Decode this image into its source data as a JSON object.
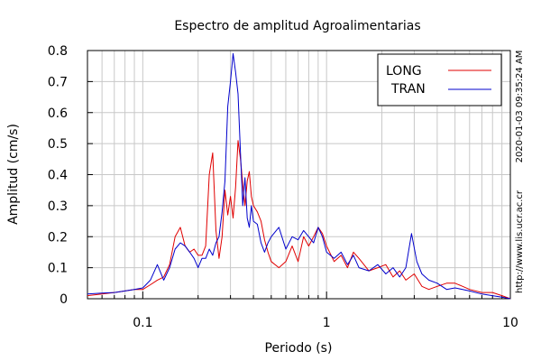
{
  "chart_data": {
    "type": "line",
    "title": "Espectro de amplitud Agroalimentarias",
    "xlabel": "Periodo (s)",
    "ylabel": "Amplitud (cm/s)",
    "x_scale": "log",
    "xlim": [
      0.05,
      10
    ],
    "ylim": [
      0,
      0.8
    ],
    "x_ticks": [
      {
        "value": 0.1,
        "label": "0.1"
      },
      {
        "value": 1,
        "label": "1"
      },
      {
        "value": 10,
        "label": "10"
      }
    ],
    "y_ticks": [
      {
        "value": 0,
        "label": "0"
      },
      {
        "value": 0.1,
        "label": "0.1"
      },
      {
        "value": 0.2,
        "label": "0.2"
      },
      {
        "value": 0.3,
        "label": "0.3"
      },
      {
        "value": 0.4,
        "label": "0.4"
      },
      {
        "value": 0.5,
        "label": "0.5"
      },
      {
        "value": 0.6,
        "label": "0.6"
      },
      {
        "value": 0.7,
        "label": "0.7"
      },
      {
        "value": 0.8,
        "label": "0.8"
      }
    ],
    "grid": true,
    "legend_position": "top-right",
    "series": [
      {
        "name": "LONG",
        "color": "#e00000",
        "x": [
          0.05,
          0.06,
          0.07,
          0.08,
          0.09,
          0.1,
          0.11,
          0.12,
          0.13,
          0.14,
          0.15,
          0.16,
          0.17,
          0.18,
          0.19,
          0.2,
          0.21,
          0.22,
          0.23,
          0.24,
          0.25,
          0.26,
          0.27,
          0.28,
          0.29,
          0.3,
          0.31,
          0.32,
          0.33,
          0.34,
          0.35,
          0.36,
          0.37,
          0.38,
          0.39,
          0.4,
          0.42,
          0.44,
          0.46,
          0.48,
          0.5,
          0.55,
          0.6,
          0.65,
          0.7,
          0.75,
          0.8,
          0.85,
          0.9,
          0.95,
          1.0,
          1.1,
          1.2,
          1.3,
          1.4,
          1.5,
          1.7,
          1.9,
          2.1,
          2.3,
          2.5,
          2.7,
          3.0,
          3.3,
          3.6,
          4.0,
          4.5,
          5.0,
          5.5,
          6.0,
          7.0,
          8.0,
          9.0,
          10.0
        ],
        "values": [
          0.01,
          0.015,
          0.02,
          0.025,
          0.03,
          0.03,
          0.045,
          0.06,
          0.07,
          0.11,
          0.2,
          0.23,
          0.17,
          0.15,
          0.16,
          0.14,
          0.14,
          0.17,
          0.4,
          0.47,
          0.22,
          0.13,
          0.2,
          0.35,
          0.27,
          0.33,
          0.26,
          0.36,
          0.51,
          0.45,
          0.37,
          0.3,
          0.38,
          0.41,
          0.33,
          0.3,
          0.28,
          0.25,
          0.19,
          0.15,
          0.12,
          0.1,
          0.12,
          0.17,
          0.12,
          0.2,
          0.17,
          0.2,
          0.23,
          0.21,
          0.17,
          0.12,
          0.14,
          0.1,
          0.15,
          0.13,
          0.09,
          0.1,
          0.11,
          0.07,
          0.09,
          0.06,
          0.08,
          0.04,
          0.03,
          0.04,
          0.05,
          0.05,
          0.04,
          0.03,
          0.02,
          0.02,
          0.01,
          0.0
        ]
      },
      {
        "name": "TRAN",
        "color": "#0000cc",
        "x": [
          0.05,
          0.06,
          0.07,
          0.08,
          0.09,
          0.1,
          0.11,
          0.12,
          0.13,
          0.14,
          0.15,
          0.16,
          0.17,
          0.18,
          0.19,
          0.2,
          0.21,
          0.22,
          0.23,
          0.24,
          0.25,
          0.26,
          0.27,
          0.28,
          0.29,
          0.3,
          0.31,
          0.32,
          0.33,
          0.34,
          0.35,
          0.36,
          0.37,
          0.38,
          0.39,
          0.4,
          0.42,
          0.44,
          0.46,
          0.48,
          0.5,
          0.55,
          0.6,
          0.65,
          0.7,
          0.75,
          0.8,
          0.85,
          0.9,
          0.95,
          1.0,
          1.1,
          1.2,
          1.3,
          1.4,
          1.5,
          1.7,
          1.9,
          2.1,
          2.3,
          2.5,
          2.7,
          2.9,
          3.1,
          3.3,
          3.6,
          4.0,
          4.5,
          5.0,
          5.5,
          6.0,
          7.0,
          8.0,
          9.0,
          10.0
        ],
        "values": [
          0.015,
          0.018,
          0.02,
          0.025,
          0.03,
          0.035,
          0.06,
          0.11,
          0.06,
          0.1,
          0.16,
          0.18,
          0.17,
          0.15,
          0.13,
          0.1,
          0.13,
          0.13,
          0.16,
          0.14,
          0.18,
          0.2,
          0.28,
          0.38,
          0.62,
          0.7,
          0.79,
          0.73,
          0.66,
          0.47,
          0.3,
          0.39,
          0.26,
          0.23,
          0.3,
          0.25,
          0.24,
          0.18,
          0.15,
          0.18,
          0.2,
          0.23,
          0.16,
          0.2,
          0.19,
          0.22,
          0.2,
          0.18,
          0.23,
          0.2,
          0.15,
          0.13,
          0.15,
          0.11,
          0.14,
          0.1,
          0.09,
          0.11,
          0.08,
          0.1,
          0.07,
          0.1,
          0.21,
          0.12,
          0.08,
          0.06,
          0.05,
          0.03,
          0.035,
          0.03,
          0.025,
          0.015,
          0.01,
          0.005,
          0.0
        ]
      }
    ],
    "side_annotation": "http://www.lis.ucr.ac.cr",
    "timestamp": "2020-01-03 09:35:24 AM"
  }
}
